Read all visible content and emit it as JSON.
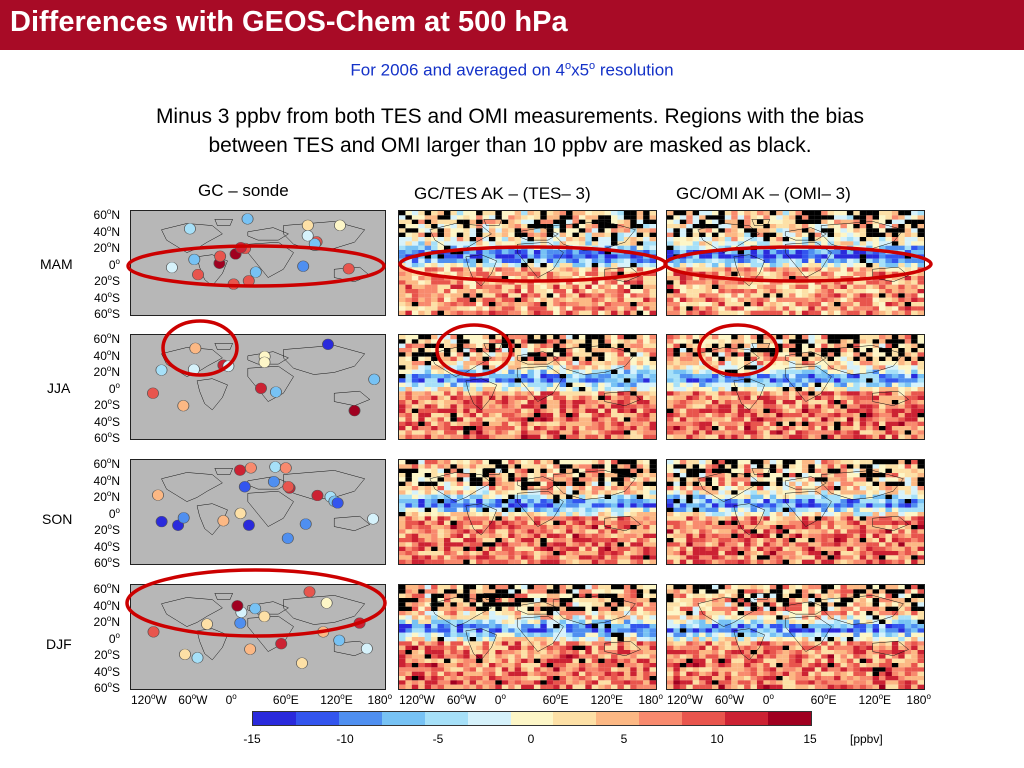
{
  "header": {
    "title": "Differences with GEOS-Chem at 500 hPa"
  },
  "subtitle": {
    "prefix": "For 2006 and averaged on 4",
    "sup1": "o",
    "mid": "x5",
    "sup2": "o",
    "suffix": " resolution"
  },
  "note": {
    "line1": "Minus 3 ppbv from both TES and OMI measurements. Regions with the bias",
    "line2": "between TES and OMI larger than 10 ppbv are masked as black."
  },
  "columns": [
    "GC – sonde",
    "GC/TES AK – (TES– 3)",
    "GC/OMI AK – (OMI– 3)"
  ],
  "rows": [
    "MAM",
    "JJA",
    "SON",
    "DJF"
  ],
  "lat_ticks": [
    {
      "v": "60",
      "u": "N"
    },
    {
      "v": "40",
      "u": "N"
    },
    {
      "v": "20",
      "u": "N"
    },
    {
      "v": "0",
      "u": ""
    },
    {
      "v": "20",
      "u": "S"
    },
    {
      "v": "40",
      "u": "S"
    },
    {
      "v": "60",
      "u": "S"
    }
  ],
  "lon_ticks": [
    {
      "v": "120",
      "u": "W"
    },
    {
      "v": "60",
      "u": "W"
    },
    {
      "v": "0",
      "u": ""
    },
    {
      "v": "60",
      "u": "E"
    },
    {
      "v": "120",
      "u": "E"
    },
    {
      "v": "180",
      "u": ""
    }
  ],
  "degree_symbol": "o",
  "colorbar": {
    "ticks": [
      "-15",
      "-10",
      "-5",
      "0",
      "5",
      "10",
      "15"
    ],
    "unit": "[ppbv]",
    "colors": [
      "#2a2adc",
      "#3355ee",
      "#4f8ff0",
      "#77c2f4",
      "#a6e0f8",
      "#d6f2fb",
      "#fdf6c7",
      "#fde0a6",
      "#fcb884",
      "#f88a6e",
      "#e8554d",
      "#cc2233",
      "#a00020"
    ]
  },
  "highlight_color": "#cc0000"
}
